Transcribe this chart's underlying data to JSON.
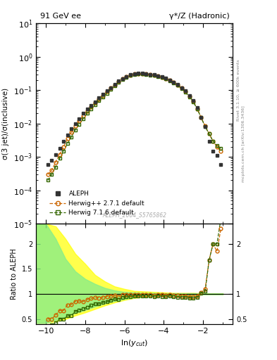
{
  "title_left": "91 GeV ee",
  "title_right": "γ*/Z (Hadronic)",
  "ylabel_main": "σ(3 jet)/σ(inclusive)",
  "ylabel_ratio": "Ratio to ALEPH",
  "xlabel": "ln(y_{cut})",
  "right_label_top": "Rivet 3.1.10, ≥ 600k events",
  "right_label_bottom": "mcplots.cern.ch [arXiv:1306.3436]",
  "watermark": "ALEPH_2004_S5765862",
  "ylim_main": [
    1e-05,
    10
  ],
  "ylim_ratio": [
    0.4,
    2.4
  ],
  "xlim": [
    -10.5,
    -0.5
  ],
  "xticks": [
    -10,
    -8,
    -6,
    -4,
    -2
  ],
  "aleph_x": [
    -9.9,
    -9.7,
    -9.5,
    -9.3,
    -9.1,
    -8.9,
    -8.7,
    -8.5,
    -8.3,
    -8.1,
    -7.9,
    -7.7,
    -7.5,
    -7.3,
    -7.1,
    -6.9,
    -6.7,
    -6.5,
    -6.3,
    -6.1,
    -5.9,
    -5.7,
    -5.5,
    -5.3,
    -5.1,
    -4.9,
    -4.7,
    -4.5,
    -4.3,
    -4.1,
    -3.9,
    -3.7,
    -3.5,
    -3.3,
    -3.1,
    -2.9,
    -2.7,
    -2.5,
    -2.3,
    -2.1,
    -1.9,
    -1.7,
    -1.5,
    -1.3,
    -1.1
  ],
  "aleph_y": [
    0.0006,
    0.0008,
    0.0012,
    0.0018,
    0.003,
    0.0045,
    0.007,
    0.01,
    0.014,
    0.02,
    0.027,
    0.035,
    0.045,
    0.06,
    0.075,
    0.095,
    0.12,
    0.15,
    0.19,
    0.22,
    0.26,
    0.29,
    0.31,
    0.32,
    0.32,
    0.31,
    0.3,
    0.29,
    0.27,
    0.25,
    0.23,
    0.2,
    0.175,
    0.15,
    0.12,
    0.095,
    0.07,
    0.05,
    0.03,
    0.015,
    0.008,
    0.003,
    0.0015,
    0.0011,
    0.0006
  ],
  "hw271_x": [
    -9.9,
    -9.7,
    -9.5,
    -9.3,
    -9.1,
    -8.9,
    -8.7,
    -8.5,
    -8.3,
    -8.1,
    -7.9,
    -7.7,
    -7.5,
    -7.3,
    -7.1,
    -6.9,
    -6.7,
    -6.5,
    -6.3,
    -6.1,
    -5.9,
    -5.7,
    -5.5,
    -5.3,
    -5.1,
    -4.9,
    -4.7,
    -4.5,
    -4.3,
    -4.1,
    -3.9,
    -3.7,
    -3.5,
    -3.3,
    -3.1,
    -2.9,
    -2.7,
    -2.5,
    -2.3,
    -2.1,
    -1.9,
    -1.7,
    -1.5,
    -1.3,
    -1.1
  ],
  "hw271_y": [
    0.0003,
    0.0004,
    0.0007,
    0.0012,
    0.002,
    0.0035,
    0.0055,
    0.0085,
    0.012,
    0.017,
    0.024,
    0.032,
    0.042,
    0.055,
    0.07,
    0.09,
    0.115,
    0.145,
    0.18,
    0.215,
    0.255,
    0.285,
    0.305,
    0.315,
    0.315,
    0.305,
    0.295,
    0.282,
    0.265,
    0.245,
    0.222,
    0.197,
    0.17,
    0.145,
    0.115,
    0.09,
    0.065,
    0.046,
    0.028,
    0.015,
    0.0085,
    0.005,
    0.003,
    0.002,
    0.0015
  ],
  "hw716_x": [
    -9.9,
    -9.7,
    -9.5,
    -9.3,
    -9.1,
    -8.9,
    -8.7,
    -8.5,
    -8.3,
    -8.1,
    -7.9,
    -7.7,
    -7.5,
    -7.3,
    -7.1,
    -6.9,
    -6.7,
    -6.5,
    -6.3,
    -6.1,
    -5.9,
    -5.7,
    -5.5,
    -5.3,
    -5.1,
    -4.9,
    -4.7,
    -4.5,
    -4.3,
    -4.1,
    -3.9,
    -3.7,
    -3.5,
    -3.3,
    -3.1,
    -2.9,
    -2.7,
    -2.5,
    -2.3,
    -2.1,
    -1.9,
    -1.7,
    -1.5,
    -1.3,
    -1.1
  ],
  "hw716_y": [
    0.0002,
    0.0003,
    0.0005,
    0.0009,
    0.0015,
    0.0025,
    0.004,
    0.0065,
    0.0095,
    0.014,
    0.02,
    0.027,
    0.036,
    0.048,
    0.062,
    0.08,
    0.105,
    0.135,
    0.17,
    0.205,
    0.245,
    0.275,
    0.297,
    0.307,
    0.307,
    0.297,
    0.287,
    0.275,
    0.258,
    0.238,
    0.216,
    0.192,
    0.165,
    0.14,
    0.111,
    0.087,
    0.063,
    0.044,
    0.027,
    0.015,
    0.008,
    0.005,
    0.003,
    0.0022,
    0.0018
  ],
  "aleph_color": "#333333",
  "hw271_color": "#cc6600",
  "hw716_color": "#336600",
  "ratio_hw271_y": [
    0.5,
    0.5,
    0.58,
    0.67,
    0.67,
    0.78,
    0.79,
    0.85,
    0.86,
    0.85,
    0.89,
    0.91,
    0.93,
    0.92,
    0.93,
    0.95,
    0.96,
    0.97,
    0.95,
    0.98,
    0.98,
    0.98,
    0.98,
    0.98,
    0.98,
    0.98,
    0.98,
    0.97,
    0.98,
    0.98,
    0.97,
    0.98,
    0.97,
    0.97,
    0.96,
    0.96,
    0.95,
    0.94,
    0.96,
    1.03,
    1.1,
    1.67,
    2.0,
    1.85,
    2.3
  ],
  "ratio_hw716_y": [
    0.33,
    0.38,
    0.42,
    0.5,
    0.5,
    0.56,
    0.57,
    0.65,
    0.68,
    0.7,
    0.74,
    0.77,
    0.8,
    0.8,
    0.83,
    0.84,
    0.88,
    0.9,
    0.89,
    0.93,
    0.94,
    0.95,
    0.96,
    0.96,
    0.96,
    0.96,
    0.96,
    0.95,
    0.96,
    0.95,
    0.94,
    0.96,
    0.94,
    0.93,
    0.93,
    0.93,
    0.92,
    0.91,
    0.93,
    1.02,
    1.05,
    1.67,
    2.0,
    2.0,
    2.5
  ],
  "band_yellow_x": [
    -10.5,
    -10.0,
    -9.5,
    -9.0,
    -8.5,
    -8.0,
    -7.5,
    -7.0,
    -6.5,
    -6.0,
    -5.5,
    -5.0,
    -4.5,
    -4.0,
    -3.5,
    -3.0,
    -2.5,
    -2.0,
    -1.5,
    -1.0
  ],
  "band_yellow_upper": [
    2.4,
    2.4,
    2.35,
    2.1,
    1.8,
    1.6,
    1.38,
    1.25,
    1.15,
    1.1,
    1.06,
    1.05,
    1.04,
    1.03,
    1.02,
    1.02,
    1.02,
    1.01,
    1.01,
    1.01
  ],
  "band_yellow_lower": [
    0.42,
    0.42,
    0.45,
    0.5,
    0.57,
    0.63,
    0.7,
    0.77,
    0.83,
    0.88,
    0.92,
    0.94,
    0.96,
    0.97,
    0.97,
    0.98,
    0.98,
    0.99,
    0.99,
    0.99
  ],
  "band_green_x": [
    -10.5,
    -10.0,
    -9.5,
    -9.0,
    -8.5,
    -8.0,
    -7.5,
    -7.0,
    -6.5,
    -6.0,
    -5.5,
    -5.0,
    -4.5,
    -4.0,
    -3.5,
    -3.0,
    -2.5,
    -2.0,
    -1.5,
    -1.0
  ],
  "band_green_upper": [
    2.4,
    2.4,
    2.1,
    1.7,
    1.45,
    1.3,
    1.2,
    1.12,
    1.07,
    1.04,
    1.03,
    1.02,
    1.02,
    1.01,
    1.01,
    1.01,
    1.01,
    1.01,
    1.01,
    1.01
  ],
  "band_green_lower": [
    0.42,
    0.42,
    0.48,
    0.55,
    0.62,
    0.68,
    0.75,
    0.81,
    0.86,
    0.9,
    0.93,
    0.95,
    0.96,
    0.97,
    0.97,
    0.98,
    0.98,
    0.99,
    0.99,
    0.99
  ]
}
